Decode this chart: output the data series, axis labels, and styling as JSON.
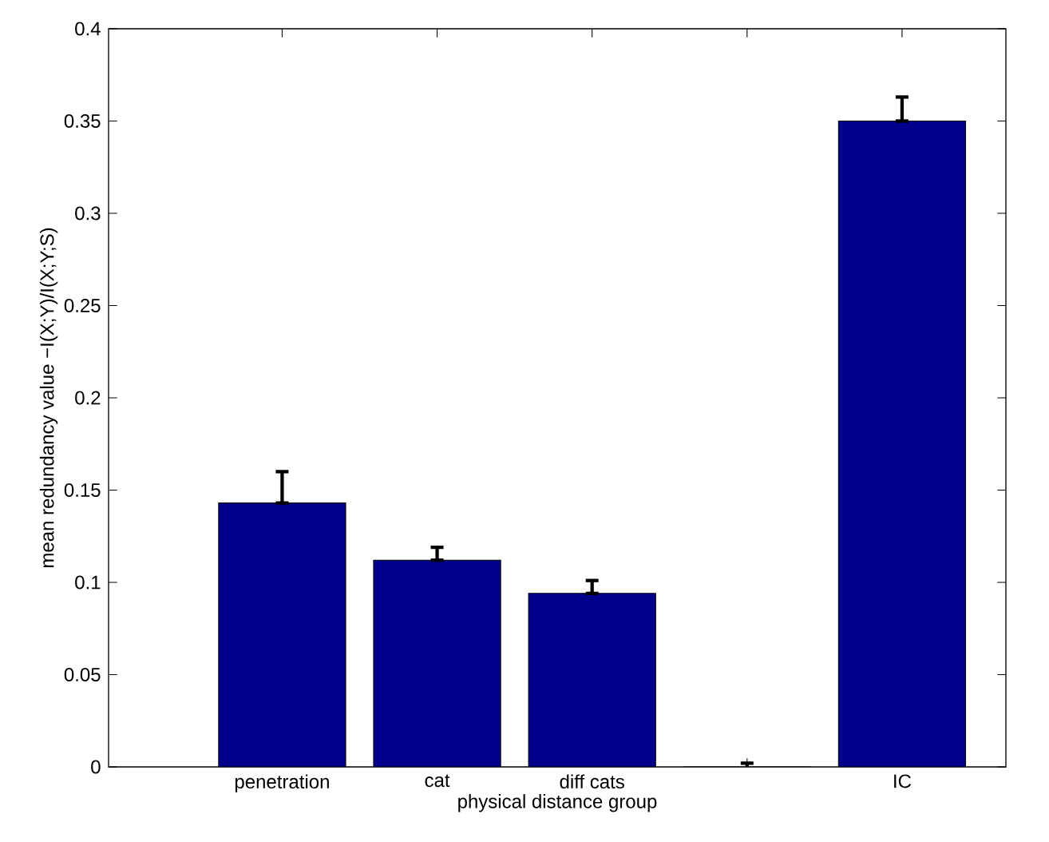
{
  "chart_data": {
    "type": "bar",
    "xlabel": "physical distance group",
    "ylabel": "mean redundancy value  −I(X;Y)/I(X;Y;S)",
    "categories": [
      "penetration",
      "cat",
      "diff cats",
      null,
      "IC"
    ],
    "values": [
      0.143,
      0.112,
      0.094,
      0,
      0.35
    ],
    "errors": [
      [
        0.143,
        0.16
      ],
      [
        0.112,
        0.119
      ],
      [
        0.094,
        0.101
      ],
      0.002,
      [
        0.35,
        0.363
      ]
    ],
    "color": "#00008b",
    "ylim": [
      0,
      0.4
    ],
    "yticks": [
      0,
      0.05,
      0.1,
      0.15,
      0.2,
      0.25,
      0.3,
      0.35,
      0.4
    ],
    "grid": false
  }
}
